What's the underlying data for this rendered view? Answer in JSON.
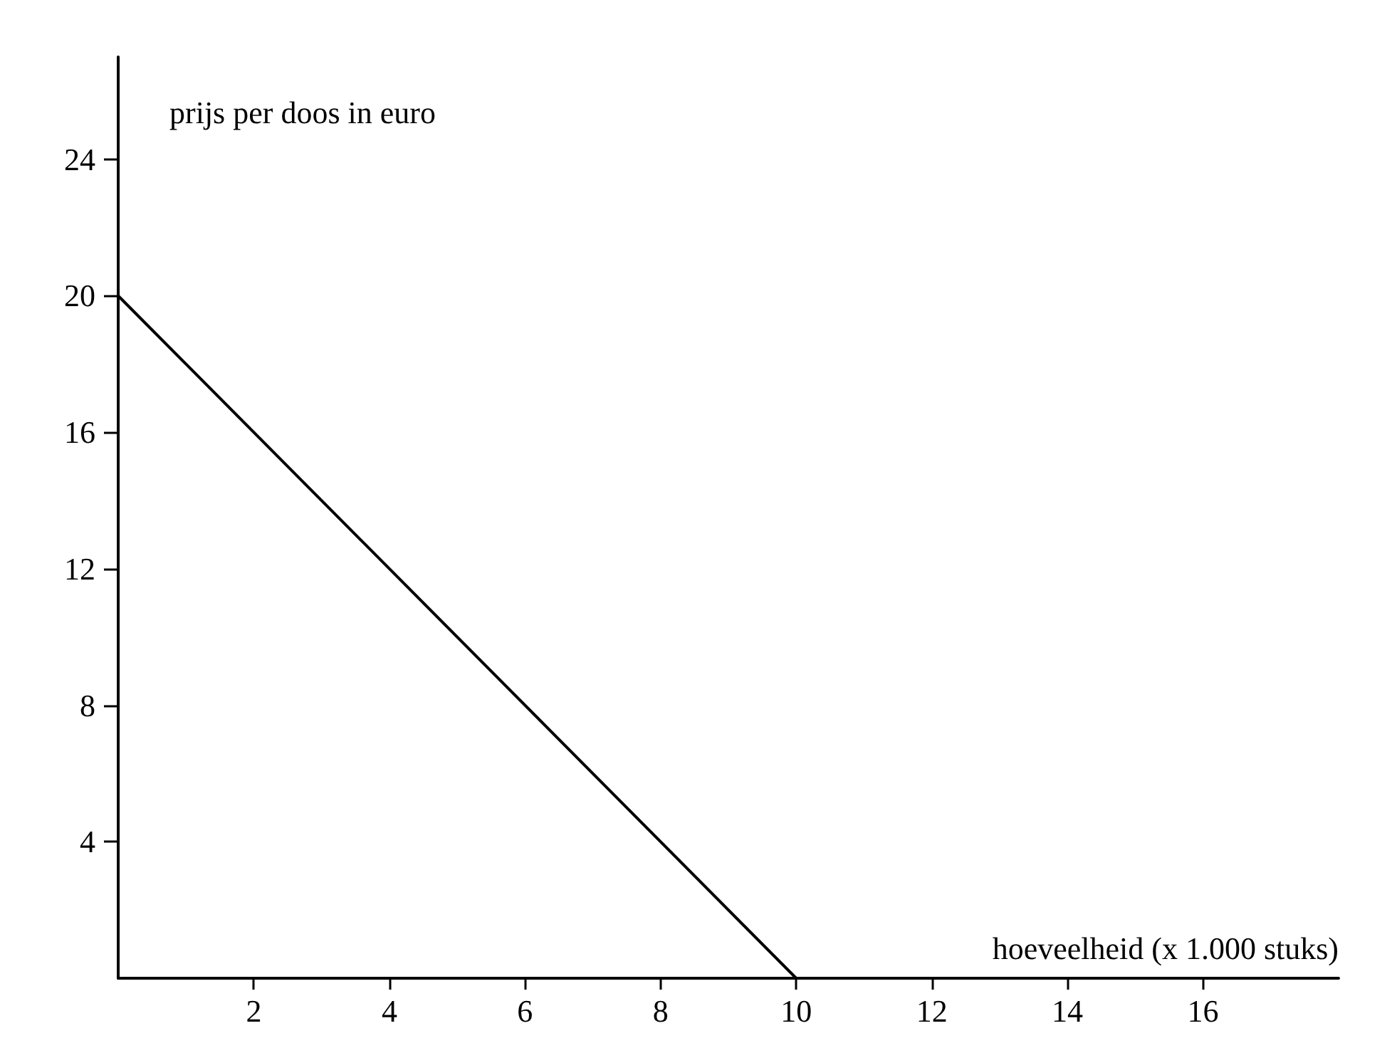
{
  "chart_data": {
    "type": "line",
    "xlabel": "hoeveelheid (x 1.000 stuks)",
    "ylabel": "prijs per doos in euro",
    "x": [
      0,
      10
    ],
    "series": [
      {
        "color": "#000000",
        "values": [
          20,
          0
        ]
      }
    ],
    "xlim": [
      0,
      18
    ],
    "xticks": [
      2,
      4,
      6,
      8,
      10,
      12,
      14,
      16
    ],
    "ylim": [
      0,
      27
    ],
    "yticks": [
      4,
      8,
      12,
      16,
      20,
      24
    ],
    "grid": false,
    "marker": "none",
    "line_style": "solid"
  }
}
